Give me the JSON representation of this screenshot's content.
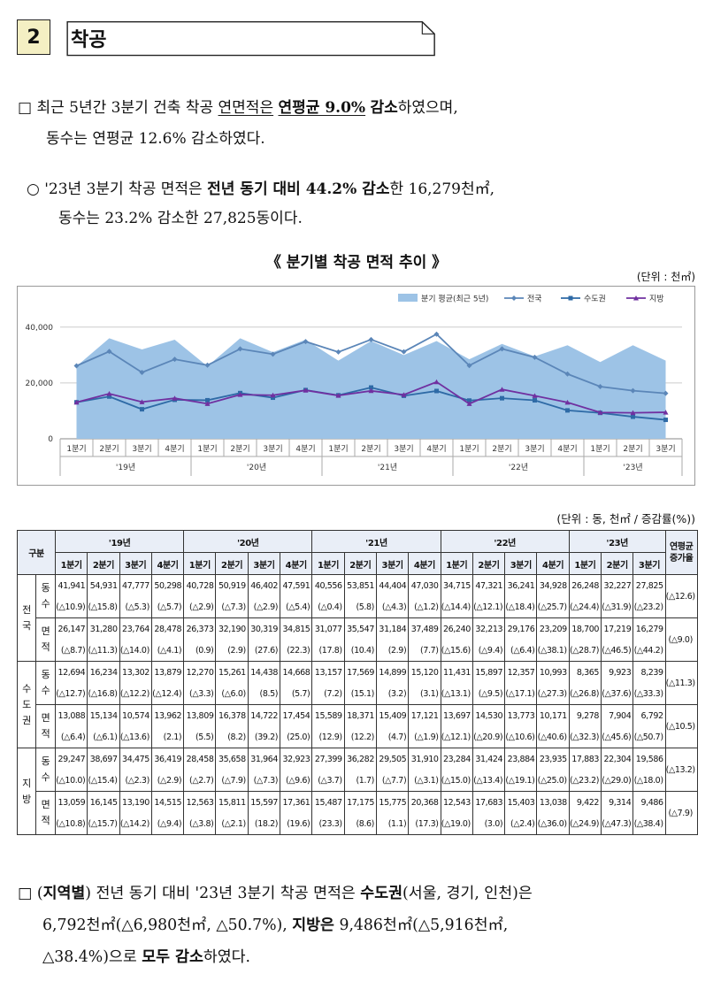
{
  "section": {
    "number": "2",
    "title": "착공"
  },
  "bullet1": {
    "marker": "□",
    "line1_a": "최근 5년간 3분기 건축 착공 ",
    "line1_b": "연면적은",
    "line1_c": " ",
    "line1_d": "연평균 9.0%",
    "line1_e": " ",
    "line1_f": "감소",
    "line1_g": "하였으며,",
    "line2": "동수는 연평균 12.6% 감소하였다."
  },
  "bullet2": {
    "marker": "○",
    "line1_a": "'23년 3분기 착공 면적은 ",
    "line1_b": "전년 동기 대비 44.2% 감소",
    "line1_c": "한 16,279천㎡,",
    "line2": "동수는 23.2% 감소한 27,825동이다."
  },
  "chart_title": "《 분기별 착공 면적 추이 》",
  "chart_unit": "(단위 : 천㎡)",
  "chart_data": {
    "type": "line",
    "title": "",
    "quarters": [
      "1분기",
      "2분기",
      "3분기",
      "4분기",
      "1분기",
      "2분기",
      "3분기",
      "4분기",
      "1분기",
      "2분기",
      "3분기",
      "4분기",
      "1분기",
      "2분기",
      "3분기",
      "4분기",
      "1분기",
      "2분기",
      "3분기"
    ],
    "years": [
      "'19년",
      "'20년",
      "'21년",
      "'22년",
      "'23년"
    ],
    "y_ticks": [
      "0",
      "20,000",
      "40,000"
    ],
    "ylim": [
      0,
      45000
    ],
    "legend_position": "top-right",
    "series": [
      {
        "name": "분기 평균(최근 5년)",
        "kind": "area",
        "color": "#9dc3e6",
        "values": [
          26000,
          36000,
          32000,
          35500,
          26000,
          36000,
          31000,
          35500,
          28000,
          35000,
          30000,
          35000,
          28500,
          34000,
          29500,
          33500,
          27500,
          33500,
          28000
        ]
      },
      {
        "name": "전국",
        "kind": "line",
        "color": "#5b86b8",
        "marker": "diamond",
        "values": [
          26147,
          31280,
          23764,
          28478,
          26373,
          32190,
          30319,
          34815,
          31077,
          35547,
          31184,
          37489,
          26240,
          32213,
          29176,
          23209,
          18700,
          17219,
          16279
        ]
      },
      {
        "name": "수도권",
        "kind": "line",
        "color": "#2e6aa6",
        "marker": "square",
        "values": [
          13088,
          15134,
          10574,
          13962,
          13809,
          16378,
          14722,
          17454,
          15589,
          18371,
          15409,
          17121,
          13697,
          14530,
          13773,
          10171,
          9278,
          7904,
          6792
        ]
      },
      {
        "name": "지방",
        "kind": "line",
        "color": "#7030a0",
        "marker": "triangle",
        "values": [
          13059,
          16145,
          13190,
          14515,
          12563,
          15811,
          15597,
          17361,
          15487,
          17175,
          15775,
          20368,
          12543,
          17683,
          15403,
          13038,
          9422,
          9314,
          9486
        ]
      }
    ]
  },
  "table_unit": "(단위 : 동, 천㎡ / 증감률(%))",
  "table": {
    "gubun": "구분",
    "years": [
      "'19년",
      "'20년",
      "'21년",
      "'22년",
      "'23년"
    ],
    "q_labels": [
      "1분기",
      "2분기",
      "3분기",
      "4분기"
    ],
    "avg_header": "연평균 증가율",
    "groups": [
      {
        "name": "전국",
        "rows": [
          {
            "label": "동수",
            "values": [
              "41,941",
              "54,931",
              "47,777",
              "50,298",
              "40,728",
              "50,919",
              "46,402",
              "47,591",
              "40,556",
              "53,851",
              "44,404",
              "47,030",
              "34,715",
              "47,321",
              "36,241",
              "34,928",
              "26,248",
              "32,227",
              "27,825"
            ],
            "rates": [
              "(△10.9)",
              "(△15.8)",
              "(△5.3)",
              "(△5.7)",
              "(△2.9)",
              "(△7.3)",
              "(△2.9)",
              "(△5.4)",
              "(△0.4)",
              "(5.8)",
              "(△4.3)",
              "(△1.2)",
              "(△14.4)",
              "(△12.1)",
              "(△18.4)",
              "(△25.7)",
              "(△24.4)",
              "(△31.9)",
              "(△23.2)"
            ],
            "avg": "(△12.6)"
          },
          {
            "label": "면적",
            "values": [
              "26,147",
              "31,280",
              "23,764",
              "28,478",
              "26,373",
              "32,190",
              "30,319",
              "34,815",
              "31,077",
              "35,547",
              "31,184",
              "37,489",
              "26,240",
              "32,213",
              "29,176",
              "23,209",
              "18,700",
              "17,219",
              "16,279"
            ],
            "rates": [
              "(△8.7)",
              "(△11.3)",
              "(△14.0)",
              "(△4.1)",
              "(0.9)",
              "(2.9)",
              "(27.6)",
              "(22.3)",
              "(17.8)",
              "(10.4)",
              "(2.9)",
              "(7.7)",
              "(△15.6)",
              "(△9.4)",
              "(△6.4)",
              "(△38.1)",
              "(△28.7)",
              "(△46.5)",
              "(△44.2)"
            ],
            "avg": "(△9.0)"
          }
        ]
      },
      {
        "name": "수도권",
        "rows": [
          {
            "label": "동수",
            "values": [
              "12,694",
              "16,234",
              "13,302",
              "13,879",
              "12,270",
              "15,261",
              "14,438",
              "14,668",
              "13,157",
              "17,569",
              "14,899",
              "15,120",
              "11,431",
              "15,897",
              "12,357",
              "10,993",
              "8,365",
              "9,923",
              "8,239"
            ],
            "rates": [
              "(△12.7)",
              "(△16.8)",
              "(△12.2)",
              "(△12.4)",
              "(△3.3)",
              "(△6.0)",
              "(8.5)",
              "(5.7)",
              "(7.2)",
              "(15.1)",
              "(3.2)",
              "(3.1)",
              "(△13.1)",
              "(△9.5)",
              "(△17.1)",
              "(△27.3)",
              "(△26.8)",
              "(△37.6)",
              "(△33.3)"
            ],
            "avg": "(△11.3)"
          },
          {
            "label": "면적",
            "values": [
              "13,088",
              "15,134",
              "10,574",
              "13,962",
              "13,809",
              "16,378",
              "14,722",
              "17,454",
              "15,589",
              "18,371",
              "15,409",
              "17,121",
              "13,697",
              "14,530",
              "13,773",
              "10,171",
              "9,278",
              "7,904",
              "6,792"
            ],
            "rates": [
              "(△6.4)",
              "(△6.1)",
              "(△13.6)",
              "(2.1)",
              "(5.5)",
              "(8.2)",
              "(39.2)",
              "(25.0)",
              "(12.9)",
              "(12.2)",
              "(4.7)",
              "(△1.9)",
              "(△12.1)",
              "(△20.9)",
              "(△10.6)",
              "(△40.6)",
              "(△32.3)",
              "(△45.6)",
              "(△50.7)"
            ],
            "avg": "(△10.5)"
          }
        ]
      },
      {
        "name": "지방",
        "rows": [
          {
            "label": "동수",
            "values": [
              "29,247",
              "38,697",
              "34,475",
              "36,419",
              "28,458",
              "35,658",
              "31,964",
              "32,923",
              "27,399",
              "36,282",
              "29,505",
              "31,910",
              "23,284",
              "31,424",
              "23,884",
              "23,935",
              "17,883",
              "22,304",
              "19,586"
            ],
            "rates": [
              "(△10.0)",
              "(△15.4)",
              "(△2.3)",
              "(△2.9)",
              "(△2.7)",
              "(△7.9)",
              "(△7.3)",
              "(△9.6)",
              "(△3.7)",
              "(1.7)",
              "(△7.7)",
              "(△3.1)",
              "(△15.0)",
              "(△13.4)",
              "(△19.1)",
              "(△25.0)",
              "(△23.2)",
              "(△29.0)",
              "(△18.0)"
            ],
            "avg": "(△13.2)"
          },
          {
            "label": "면적",
            "values": [
              "13,059",
              "16,145",
              "13,190",
              "14,515",
              "12,563",
              "15,811",
              "15,597",
              "17,361",
              "15,487",
              "17,175",
              "15,775",
              "20,368",
              "12,543",
              "17,683",
              "15,403",
              "13,038",
              "9,422",
              "9,314",
              "9,486"
            ],
            "rates": [
              "(△10.8)",
              "(△15.7)",
              "(△14.2)",
              "(△9.4)",
              "(△3.8)",
              "(△2.1)",
              "(18.2)",
              "(19.6)",
              "(23.3)",
              "(8.6)",
              "(1.1)",
              "(17.3)",
              "(△19.0)",
              "(3.0)",
              "(△2.4)",
              "(△36.0)",
              "(△24.9)",
              "(△47.3)",
              "(△38.4)"
            ],
            "avg": "(△7.9)"
          }
        ]
      }
    ]
  },
  "bullet3": {
    "marker": "□",
    "line1_a": "(",
    "line1_b": "지역별",
    "line1_c": ") 전년 동기 대비 '23년 3분기 착공 면적은 ",
    "line1_d": "수도권",
    "line1_e": "(서울, 경기, 인천)은",
    "line2_a": "6,792천㎡(△6,980천㎡, △50.7%), ",
    "line2_b": "지방은",
    "line2_c": " 9,486천㎡(△5,916천㎡,",
    "line3_a": "△38.4%)으로 ",
    "line3_b": "모두 감소",
    "line3_c": "하였다."
  }
}
